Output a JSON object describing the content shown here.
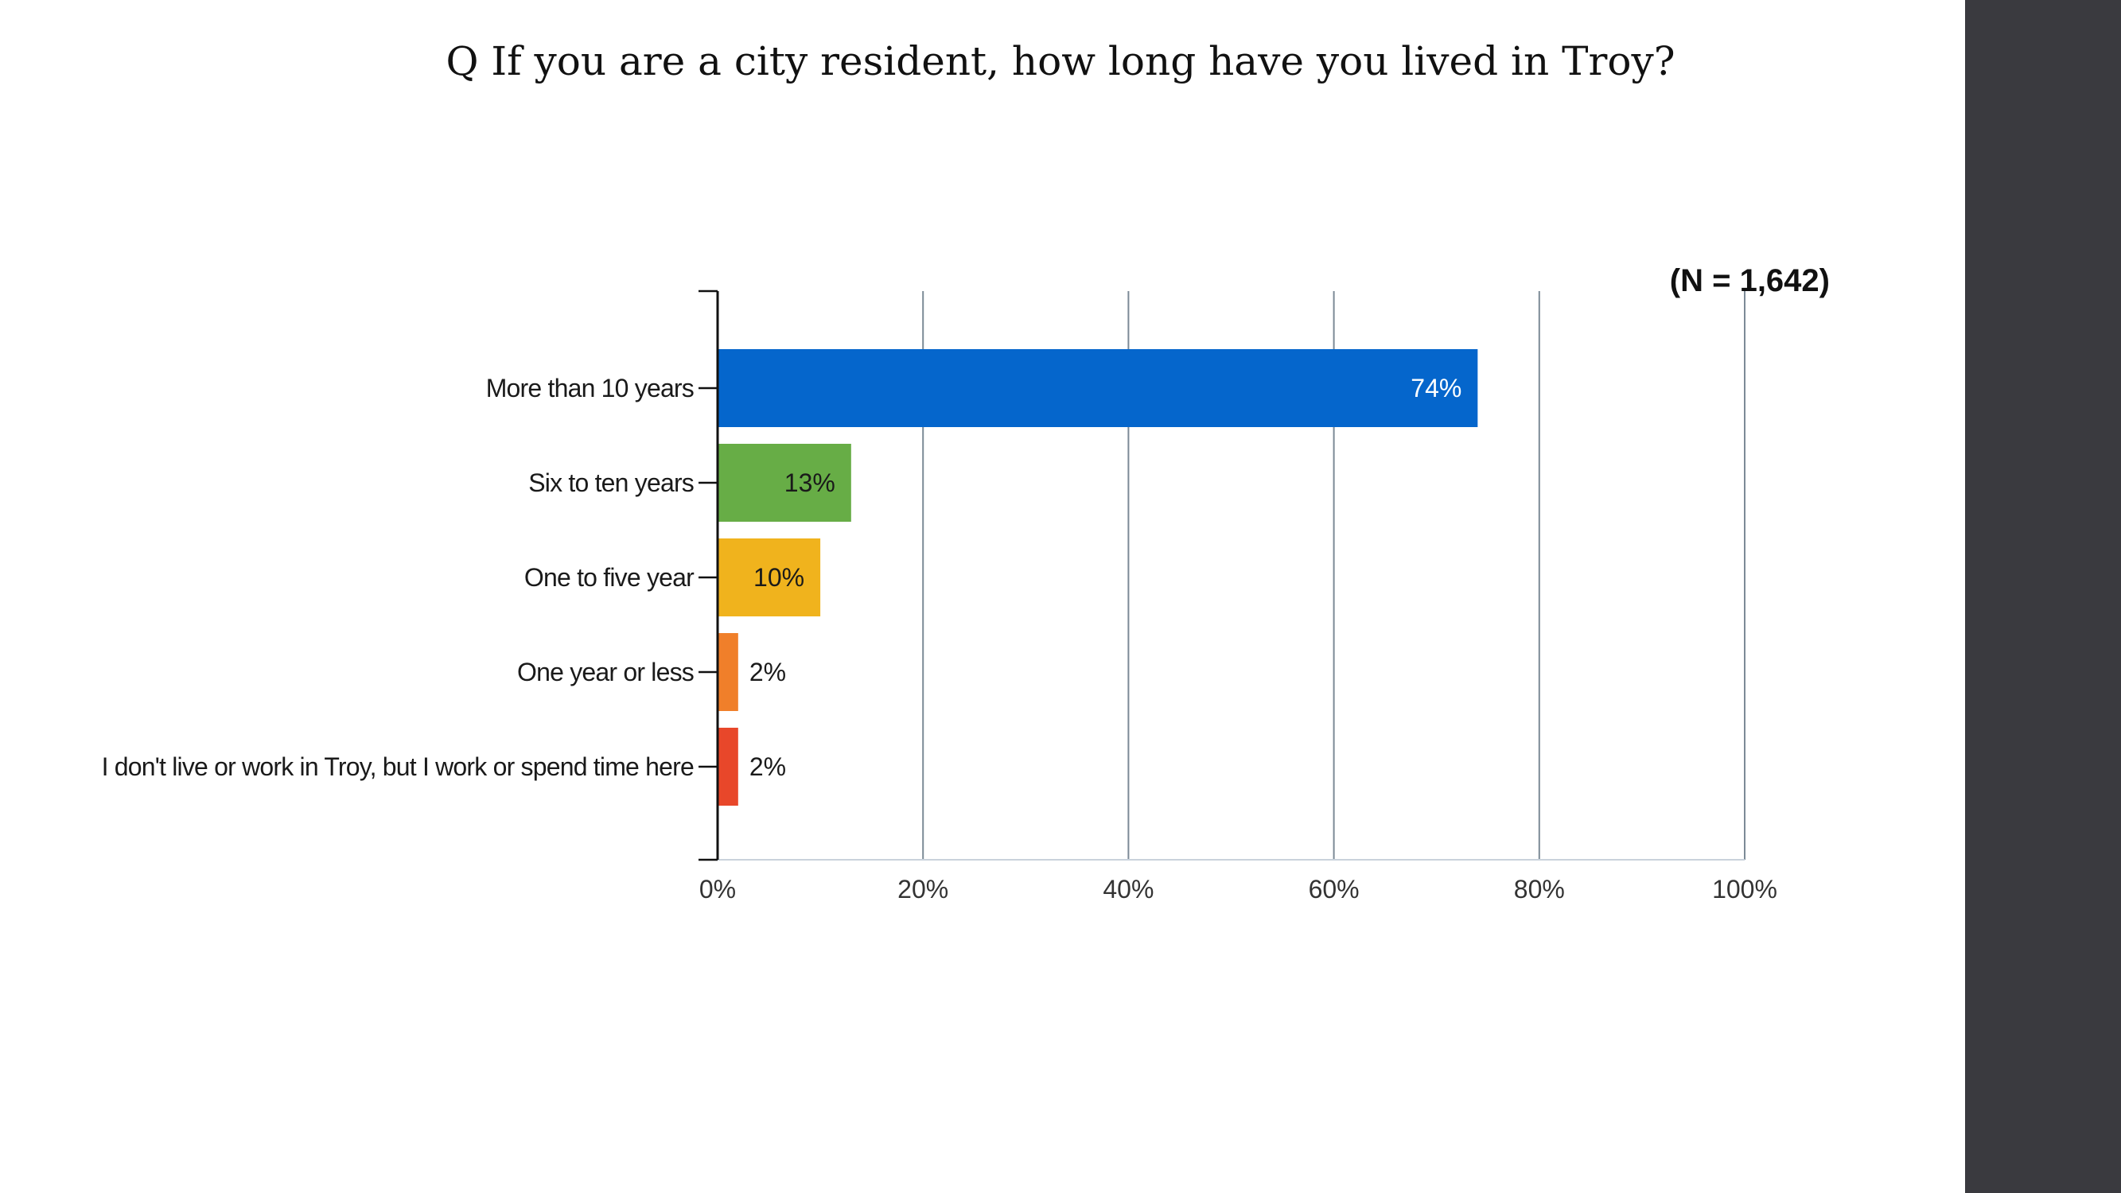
{
  "chart_data": {
    "type": "bar",
    "orientation": "horizontal",
    "title": "Q If you are a city resident, how long have you lived in Troy?",
    "annotation": "(N = 1,642)",
    "categories": [
      "More than 10 years",
      "Six to ten years",
      "One to five year",
      "One year or less",
      "I don't live or work in Troy, but I work or spend time here"
    ],
    "values": [
      74,
      13,
      10,
      2,
      2
    ],
    "data_labels": [
      "74%",
      "13%",
      "10%",
      "2%",
      "2%"
    ],
    "colors": [
      "#0566cc",
      "#67ad46",
      "#f0b31d",
      "#f07f2a",
      "#e8472a"
    ],
    "label_colors": [
      "#ffffff",
      "#1a1a1a",
      "#1a1a1a",
      "#1a1a1a",
      "#1a1a1a"
    ],
    "xlim": [
      0,
      100
    ],
    "xticks": [
      0,
      20,
      40,
      60,
      80,
      100
    ],
    "xtick_labels": [
      "0%",
      "20%",
      "40%",
      "60%",
      "80%",
      "100%"
    ],
    "xlabel": "",
    "ylabel": "",
    "grid": "vertical"
  }
}
